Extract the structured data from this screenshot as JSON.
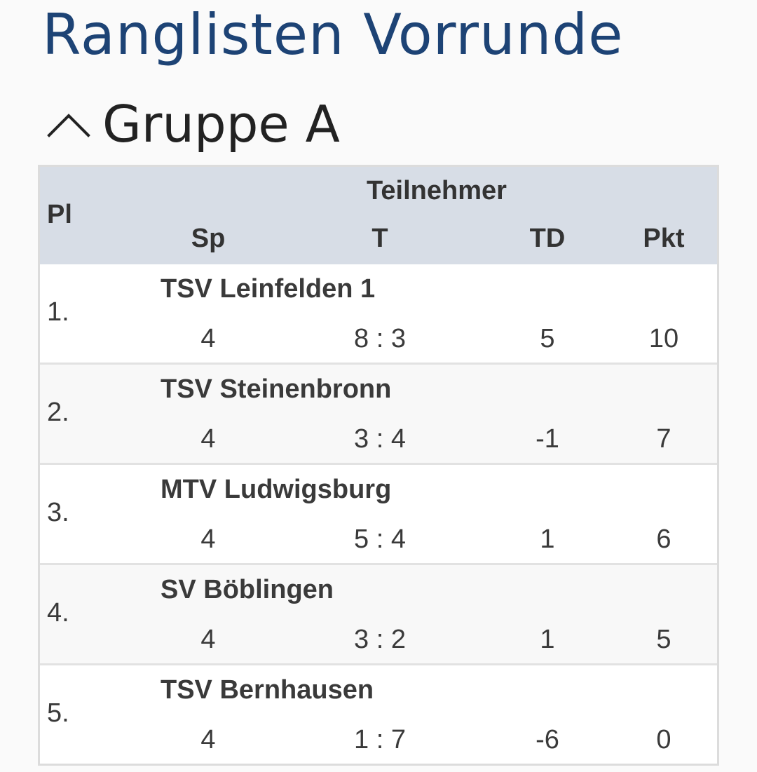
{
  "page": {
    "title": "Ranglisten Vorrunde"
  },
  "group": {
    "title": "Gruppe A",
    "icon": "chevron-up-icon"
  },
  "table": {
    "headers": {
      "rank": "Pl",
      "team": "Teilnehmer",
      "games": "Sp",
      "goals": "T",
      "diff": "TD",
      "points": "Pkt"
    },
    "rows": [
      {
        "rank": "1.",
        "team": "TSV Leinfelden 1",
        "games": "4",
        "goals": "8 : 3",
        "diff": "5",
        "points": "10"
      },
      {
        "rank": "2.",
        "team": "TSV Steinenbronn",
        "games": "4",
        "goals": "3 : 4",
        "diff": "-1",
        "points": "7"
      },
      {
        "rank": "3.",
        "team": "MTV Ludwigsburg",
        "games": "4",
        "goals": "5 : 4",
        "diff": "1",
        "points": "6"
      },
      {
        "rank": "4.",
        "team": "SV Böblingen",
        "games": "4",
        "goals": "3 : 2",
        "diff": "1",
        "points": "5"
      },
      {
        "rank": "5.",
        "team": "TSV Bernhausen",
        "games": "4",
        "goals": "1 : 7",
        "diff": "-6",
        "points": "0"
      }
    ]
  },
  "colors": {
    "title": "#1d4375",
    "header_background": "#d7dde6",
    "row_alt_background": "#f8f8f8",
    "border": "#dcdcdc"
  }
}
